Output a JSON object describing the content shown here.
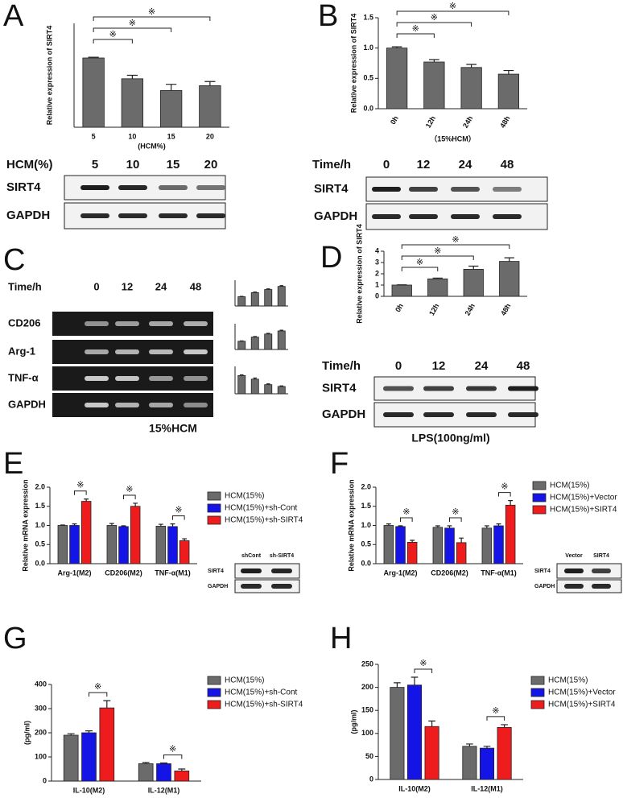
{
  "panel_labels": [
    "A",
    "B",
    "C",
    "D",
    "E",
    "F",
    "G",
    "H"
  ],
  "chart_data": [
    {
      "type": "bar",
      "ylabel": "Relative expression of SIRT4",
      "xlabel": "(HCM%)",
      "categories": [
        "5",
        "10",
        "15",
        "20"
      ],
      "values": [
        1.0,
        0.7,
        0.53,
        0.6
      ],
      "errors": [
        0.01,
        0.05,
        0.09,
        0.06
      ],
      "color": "#6b6b6b",
      "ylim": [
        0,
        1.5
      ],
      "significance": [
        {
          "pair": [
            0,
            1
          ],
          "label": "※"
        },
        {
          "pair": [
            0,
            2
          ],
          "label": "※"
        },
        {
          "pair": [
            0,
            3
          ],
          "label": "※"
        }
      ]
    },
    {
      "type": "bar",
      "ylabel": "Relative expression of SIRT4",
      "xlabel": "（15%HCM）",
      "categories": [
        "0h",
        "12h",
        "24h",
        "48h"
      ],
      "values": [
        1.0,
        0.77,
        0.68,
        0.57
      ],
      "errors": [
        0.02,
        0.04,
        0.05,
        0.06
      ],
      "color": "#6b6b6b",
      "ylim": [
        0,
        1.5
      ],
      "yticks": [
        {
          "value": 0,
          "label": "0.0"
        },
        {
          "value": 0.5,
          "label": "0.5"
        },
        {
          "value": 1,
          "label": "1.0"
        },
        {
          "value": 1.5,
          "label": "1.5"
        }
      ],
      "significance": [
        {
          "pair": [
            0,
            1
          ],
          "label": "※"
        },
        {
          "pair": [
            0,
            2
          ],
          "label": "※"
        },
        {
          "pair": [
            0,
            3
          ],
          "label": "※"
        }
      ]
    },
    {
      "type": "bar",
      "values": [
        0.9,
        1.3,
        1.6,
        1.9
      ],
      "errors": [
        0.03,
        0.05,
        0.06,
        0.07
      ],
      "color": "#6b6b6b",
      "ylim": [
        0,
        2.5
      ]
    },
    {
      "type": "bar",
      "values": [
        0.8,
        1.2,
        1.5,
        1.8
      ],
      "errors": [
        0.03,
        0.05,
        0.06,
        0.07
      ],
      "color": "#6b6b6b",
      "ylim": [
        0,
        2.5
      ]
    },
    {
      "type": "bar",
      "values": [
        1.0,
        0.8,
        0.5,
        0.4
      ],
      "errors": [
        0.03,
        0.06,
        0.04,
        0.03
      ],
      "color": "#6b6b6b",
      "ylim": [
        0,
        1.5
      ]
    },
    {
      "type": "bar",
      "ylabel": "Relative expression of SIRT4",
      "categories": [
        "0h",
        "12h",
        "24h",
        "48h"
      ],
      "values": [
        1.0,
        1.55,
        2.4,
        3.1
      ],
      "errors": [
        0.02,
        0.07,
        0.28,
        0.32
      ],
      "color": "#6b6b6b",
      "ylim": [
        0,
        4
      ],
      "yticks": [
        0,
        1,
        2,
        3,
        4
      ],
      "significance": [
        {
          "pair": [
            0,
            1
          ],
          "label": "※"
        },
        {
          "pair": [
            0,
            2
          ],
          "label": "※"
        },
        {
          "pair": [
            0,
            3
          ],
          "label": "※"
        }
      ]
    },
    {
      "type": "bar",
      "ylabel": "Relative mRNA expression",
      "categories": [
        "Arg-1(M2)",
        "CD206(M2)",
        "TNF-α(M1)"
      ],
      "series": [
        {
          "name": "HCM(15%)",
          "color": "#6b6b6b",
          "values": [
            1.0,
            1.0,
            0.98
          ],
          "errors": [
            0.01,
            0.05,
            0.05
          ]
        },
        {
          "name": "HCM(15%)+sh-Cont",
          "color": "#1414e6",
          "values": [
            1.0,
            0.97,
            0.97
          ],
          "errors": [
            0.04,
            0.02,
            0.07
          ]
        },
        {
          "name": "HCM(15%)+sh-SIRT4",
          "color": "#ee1c1c",
          "values": [
            1.63,
            1.5,
            0.6
          ],
          "errors": [
            0.06,
            0.08,
            0.05
          ]
        }
      ],
      "ylim": [
        0,
        2
      ],
      "yticks": [
        {
          "value": 0,
          "label": "0.0"
        },
        {
          "value": 0.5,
          "label": "0.5"
        },
        {
          "value": 1,
          "label": "1.0"
        },
        {
          "value": 1.5,
          "label": "1.5"
        },
        {
          "value": 2,
          "label": "2.0"
        }
      ],
      "significance": [
        {
          "category": 0,
          "series": [
            1,
            2
          ],
          "label": "※"
        },
        {
          "category": 1,
          "series": [
            1,
            2
          ],
          "label": "※"
        },
        {
          "category": 2,
          "series": [
            1,
            2
          ],
          "label": "※"
        }
      ]
    },
    {
      "type": "bar",
      "ylabel": "Relative mRNA expression",
      "categories": [
        "Arg-1(M2)",
        "CD206(M2)",
        "TNF-α(M1)"
      ],
      "series": [
        {
          "name": "HCM(15%)",
          "color": "#6b6b6b",
          "values": [
            1.0,
            0.95,
            0.93
          ],
          "errors": [
            0.04,
            0.04,
            0.06
          ]
        },
        {
          "name": "HCM(15%)+Vector",
          "color": "#1414e6",
          "values": [
            0.97,
            0.93,
            0.99
          ],
          "errors": [
            0.02,
            0.06,
            0.05
          ]
        },
        {
          "name": "HCM(15%)+SIRT4",
          "color": "#ee1c1c",
          "values": [
            0.56,
            0.55,
            1.53
          ],
          "errors": [
            0.05,
            0.12,
            0.12
          ]
        }
      ],
      "ylim": [
        0,
        2
      ],
      "yticks": [
        {
          "value": 0,
          "label": "0.0"
        },
        {
          "value": 0.5,
          "label": "0.5"
        },
        {
          "value": 1,
          "label": "1.0"
        },
        {
          "value": 1.5,
          "label": "1.5"
        },
        {
          "value": 2,
          "label": "2.0"
        }
      ],
      "significance": [
        {
          "category": 0,
          "series": [
            1,
            2
          ],
          "label": "※"
        },
        {
          "category": 1,
          "series": [
            1,
            2
          ],
          "label": "※"
        },
        {
          "category": 2,
          "series": [
            1,
            2
          ],
          "label": "※"
        }
      ]
    },
    {
      "type": "bar",
      "ylabel": "(pg/ml)",
      "categories": [
        "IL-10(M2)",
        "IL-12(M1)"
      ],
      "series": [
        {
          "name": "HCM(15%)",
          "color": "#6b6b6b",
          "values": [
            190,
            72
          ],
          "errors": [
            6,
            5
          ]
        },
        {
          "name": "HCM(15%)+sh-Cont",
          "color": "#1414e6",
          "values": [
            200,
            72
          ],
          "errors": [
            8,
            3
          ]
        },
        {
          "name": "HCM(15%)+sh-SIRT4",
          "color": "#ee1c1c",
          "values": [
            303,
            42
          ],
          "errors": [
            30,
            8
          ]
        }
      ],
      "ylim": [
        0,
        400
      ],
      "yticks": [
        0,
        100,
        200,
        300,
        400
      ],
      "significance": [
        {
          "category": 0,
          "series": [
            1,
            2
          ],
          "label": "※"
        },
        {
          "category": 1,
          "series": [
            1,
            2
          ],
          "label": "※"
        }
      ]
    },
    {
      "type": "bar",
      "ylabel": "(pg/ml)",
      "categories": [
        "IL-10(M2)",
        "IL-12(M1)"
      ],
      "series": [
        {
          "name": "HCM(15%)",
          "color": "#6b6b6b",
          "values": [
            200,
            72
          ],
          "errors": [
            10,
            5
          ]
        },
        {
          "name": "HCM(15%)+Vector",
          "color": "#1414e6",
          "values": [
            205,
            68
          ],
          "errors": [
            17,
            4
          ]
        },
        {
          "name": "HCM(15%)+SIRT4",
          "color": "#ee1c1c",
          "values": [
            115,
            113
          ],
          "errors": [
            12,
            6
          ]
        }
      ],
      "ylim": [
        0,
        250
      ],
      "yticks": [
        0,
        50,
        100,
        150,
        200,
        250
      ],
      "significance": [
        {
          "category": 0,
          "series": [
            1,
            2
          ],
          "label": "※"
        },
        {
          "category": 1,
          "series": [
            1,
            2
          ],
          "label": "※"
        }
      ]
    }
  ],
  "blots": [
    {
      "header": "HCM(%)",
      "lanes": [
        "5",
        "10",
        "15",
        "20"
      ],
      "rows": [
        "SIRT4",
        "GAPDH"
      ]
    },
    {
      "header": "Time/h",
      "lanes": [
        "0",
        "12",
        "24",
        "48"
      ],
      "rows": [
        "SIRT4",
        "GAPDH"
      ]
    },
    {
      "header": "Time/h",
      "lanes": [
        "0",
        "12",
        "24",
        "48"
      ],
      "rows": [
        "CD206",
        "Arg-1",
        "TNF-α",
        "GAPDH"
      ],
      "caption": "15%HCM"
    },
    {
      "header": "Time/h",
      "lanes": [
        "0",
        "12",
        "24",
        "48"
      ],
      "rows": [
        "SIRT4",
        "GAPDH"
      ],
      "caption": "LPS(100ng/ml)"
    },
    {
      "lanes": [
        "shCont",
        "sh-SIRT4"
      ],
      "rows": [
        "SIRT4",
        "GAPDH"
      ]
    },
    {
      "lanes": [
        "Vector",
        "SIRT4"
      ],
      "rows": [
        "SIRT4",
        "GAPDH"
      ]
    }
  ]
}
